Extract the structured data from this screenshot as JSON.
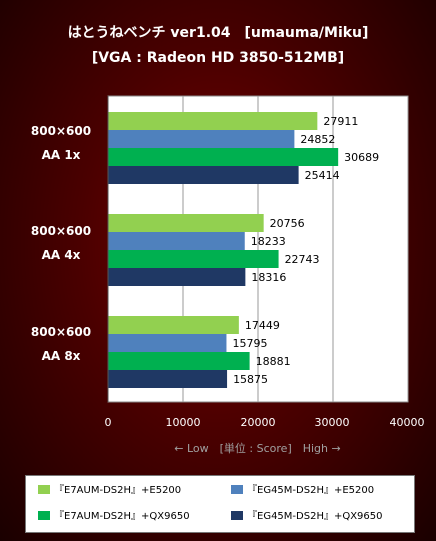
{
  "title": {
    "line1": "はとうねベンチ ver1.04　[umauma/Miku]",
    "line2": "[VGA : Radeon HD 3850-512MB]"
  },
  "chart_data": {
    "type": "bar",
    "orientation": "horizontal",
    "categories": [
      {
        "line1": "800×600",
        "line2": "AA 1x"
      },
      {
        "line1": "800×600",
        "line2": "AA 4x"
      },
      {
        "line1": "800×600",
        "line2": "AA 8x"
      }
    ],
    "series": [
      {
        "name": "『E7AUM-DS2H』+E5200",
        "color": "#92d050",
        "values": [
          27911,
          20756,
          17449
        ]
      },
      {
        "name": "『EG45M-DS2H』+E5200",
        "color": "#4f81bd",
        "values": [
          24852,
          18233,
          15795
        ]
      },
      {
        "name": "『E7AUM-DS2H』+QX9650",
        "color": "#00b050",
        "values": [
          30689,
          22743,
          18881
        ]
      },
      {
        "name": "『EG45M-DS2H』+QX9650",
        "color": "#1f3864",
        "values": [
          25414,
          18316,
          15875
        ]
      }
    ],
    "x_ticks": [
      "0",
      "10000",
      "20000",
      "30000",
      "40000"
    ],
    "xlim": [
      0,
      40000
    ],
    "xlabel": "← Low　[単位 : Score]　High →",
    "grid": true,
    "legend_position": "bottom"
  }
}
